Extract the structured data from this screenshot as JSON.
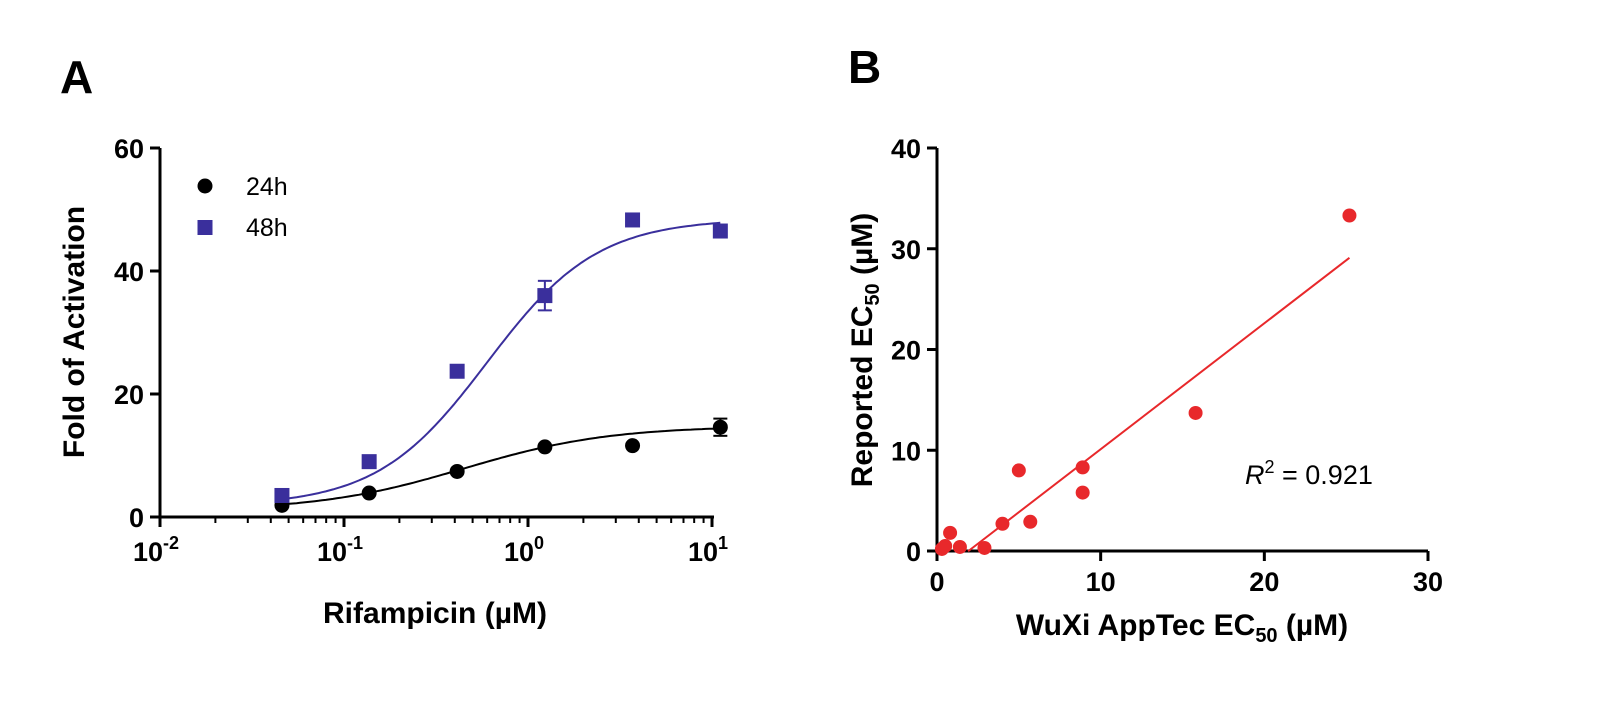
{
  "colors": {
    "s24h": "#000000",
    "s48h": "#3a2f9c",
    "scatter": "#e8282b",
    "axis": "#000000"
  },
  "chart_data": [
    {
      "panel": "A",
      "type": "scatter",
      "xscale": "log",
      "xlabel_main": "Rifampicin (",
      "xlabel_unit": "µM",
      "xlabel_end": ")",
      "ylabel": "Fold of Activation",
      "xlim": [
        0.01,
        12
      ],
      "ylim": [
        0,
        60
      ],
      "x_ticks": [
        {
          "value": 0.01,
          "base": "10",
          "exp": "-2"
        },
        {
          "value": 0.1,
          "base": "10",
          "exp": "-1"
        },
        {
          "value": 1,
          "base": "10",
          "exp": "0"
        },
        {
          "value": 10,
          "base": "10",
          "exp": "1"
        }
      ],
      "y_ticks": [
        {
          "value": 0,
          "label": "0"
        },
        {
          "value": 20,
          "label": "20"
        },
        {
          "value": 40,
          "label": "40"
        },
        {
          "value": 60,
          "label": "60"
        }
      ],
      "legend_position": "top-left",
      "series": [
        {
          "name": "24h",
          "marker": "circle",
          "points": [
            {
              "x": 0.046,
              "y": 1.9,
              "err": 0
            },
            {
              "x": 0.137,
              "y": 3.9,
              "err": 0
            },
            {
              "x": 0.412,
              "y": 7.4,
              "err": 0
            },
            {
              "x": 1.235,
              "y": 11.4,
              "err": 0
            },
            {
              "x": 3.7,
              "y": 11.6,
              "err": 0
            },
            {
              "x": 11.1,
              "y": 14.6,
              "err": 1.4
            }
          ],
          "fit": {
            "bottom": 1.0,
            "top": 14.8,
            "ec50": 0.45,
            "hill": 1.1
          }
        },
        {
          "name": "48h",
          "marker": "square",
          "points": [
            {
              "x": 0.046,
              "y": 3.5,
              "err": 0
            },
            {
              "x": 0.137,
              "y": 9.0,
              "err": 0
            },
            {
              "x": 0.412,
              "y": 23.7,
              "err": 0
            },
            {
              "x": 1.235,
              "y": 36.0,
              "err": 2.4
            },
            {
              "x": 3.7,
              "y": 48.3,
              "err": 0
            },
            {
              "x": 11.1,
              "y": 46.5,
              "err": 0.8
            }
          ],
          "fit": {
            "bottom": 1.8,
            "top": 48.5,
            "ec50": 0.6,
            "hill": 1.45
          }
        }
      ]
    },
    {
      "panel": "B",
      "type": "scatter",
      "xlabel_main": "WuXi AppTec EC",
      "xlabel_sub": "50",
      "xlabel_end": " (µM)",
      "ylabel_main": "Reported EC",
      "ylabel_sub": "50",
      "ylabel_end": " (µM)",
      "xlim": [
        0,
        30
      ],
      "ylim": [
        0,
        40
      ],
      "x_ticks": [
        {
          "value": 0,
          "label": "0"
        },
        {
          "value": 10,
          "label": "10"
        },
        {
          "value": 20,
          "label": "20"
        },
        {
          "value": 30,
          "label": "30"
        }
      ],
      "y_ticks": [
        {
          "value": 0,
          "label": "0"
        },
        {
          "value": 10,
          "label": "10"
        },
        {
          "value": 20,
          "label": "20"
        },
        {
          "value": 30,
          "label": "30"
        },
        {
          "value": 40,
          "label": "40"
        }
      ],
      "points": [
        {
          "x": 0.3,
          "y": 0.2
        },
        {
          "x": 0.5,
          "y": 0.5
        },
        {
          "x": 0.8,
          "y": 1.8
        },
        {
          "x": 1.4,
          "y": 0.4
        },
        {
          "x": 2.9,
          "y": 0.3
        },
        {
          "x": 4.0,
          "y": 2.7
        },
        {
          "x": 5.0,
          "y": 8.0
        },
        {
          "x": 5.7,
          "y": 2.9
        },
        {
          "x": 8.9,
          "y": 8.3
        },
        {
          "x": 8.9,
          "y": 5.8
        },
        {
          "x": 15.8,
          "y": 13.7
        },
        {
          "x": 25.2,
          "y": 33.3
        }
      ],
      "regression": {
        "x_start": 1.9,
        "x_end": 25.2,
        "slope": 1.25,
        "intercept": -2.4
      },
      "annotation": {
        "r_symbol": "R",
        "r_exp": "2",
        "r_value": " = 0.921"
      }
    }
  ]
}
